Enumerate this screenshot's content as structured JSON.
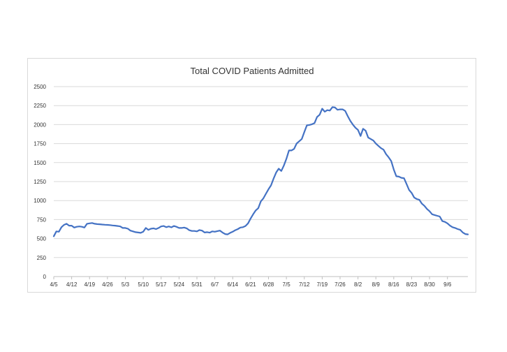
{
  "chart_data": {
    "type": "line",
    "title": "Total COVID Patients Admitted",
    "xlabel": "",
    "ylabel": "",
    "ylim": [
      0,
      2500
    ],
    "yticks": [
      0,
      250,
      500,
      750,
      1000,
      1250,
      1500,
      1750,
      2000,
      2250,
      2500
    ],
    "grid": true,
    "legend": "none",
    "colors": {
      "line": "#4472c4",
      "grid": "#d9d9d9",
      "axis": "#bfbfbf"
    },
    "xticks": [
      {
        "label": "4/5",
        "day": 0
      },
      {
        "label": "4/12",
        "day": 7
      },
      {
        "label": "4/19",
        "day": 14
      },
      {
        "label": "4/26",
        "day": 21
      },
      {
        "label": "5/3",
        "day": 28
      },
      {
        "label": "5/10",
        "day": 35
      },
      {
        "label": "5/17",
        "day": 42
      },
      {
        "label": "5/24",
        "day": 49
      },
      {
        "label": "5/31",
        "day": 56
      },
      {
        "label": "6/7",
        "day": 63
      },
      {
        "label": "6/14",
        "day": 70
      },
      {
        "label": "6/21",
        "day": 77
      },
      {
        "label": "6/28",
        "day": 84
      },
      {
        "label": "7/5",
        "day": 91
      },
      {
        "label": "7/12",
        "day": 98
      },
      {
        "label": "7/19",
        "day": 105
      },
      {
        "label": "7/26",
        "day": 112
      },
      {
        "label": "8/2",
        "day": 119
      },
      {
        "label": "8/9",
        "day": 126
      },
      {
        "label": "8/16",
        "day": 133
      },
      {
        "label": "8/23",
        "day": 140
      },
      {
        "label": "8/30",
        "day": 147
      },
      {
        "label": "9/6",
        "day": 154
      }
    ],
    "series": [
      {
        "values": [
          [
            0,
            530
          ],
          [
            1,
            595
          ],
          [
            2,
            590
          ],
          [
            3,
            650
          ],
          [
            4,
            680
          ],
          [
            5,
            695
          ],
          [
            6,
            670
          ],
          [
            7,
            670
          ],
          [
            8,
            645
          ],
          [
            9,
            655
          ],
          [
            10,
            660
          ],
          [
            11,
            655
          ],
          [
            12,
            645
          ],
          [
            13,
            695
          ],
          [
            14,
            700
          ],
          [
            15,
            705
          ],
          [
            16,
            695
          ],
          [
            17,
            690
          ],
          [
            18,
            688
          ],
          [
            19,
            685
          ],
          [
            20,
            682
          ],
          [
            21,
            680
          ],
          [
            22,
            677
          ],
          [
            23,
            673
          ],
          [
            24,
            670
          ],
          [
            25,
            665
          ],
          [
            26,
            660
          ],
          [
            27,
            640
          ],
          [
            28,
            640
          ],
          [
            29,
            630
          ],
          [
            30,
            605
          ],
          [
            31,
            595
          ],
          [
            32,
            585
          ],
          [
            33,
            580
          ],
          [
            34,
            575
          ],
          [
            35,
            590
          ],
          [
            36,
            640
          ],
          [
            37,
            615
          ],
          [
            38,
            630
          ],
          [
            39,
            635
          ],
          [
            40,
            625
          ],
          [
            41,
            640
          ],
          [
            42,
            660
          ],
          [
            43,
            665
          ],
          [
            44,
            650
          ],
          [
            45,
            660
          ],
          [
            46,
            648
          ],
          [
            47,
            665
          ],
          [
            48,
            655
          ],
          [
            49,
            640
          ],
          [
            50,
            640
          ],
          [
            51,
            645
          ],
          [
            52,
            635
          ],
          [
            53,
            610
          ],
          [
            54,
            600
          ],
          [
            55,
            600
          ],
          [
            56,
            595
          ],
          [
            57,
            612
          ],
          [
            58,
            605
          ],
          [
            59,
            580
          ],
          [
            60,
            585
          ],
          [
            61,
            578
          ],
          [
            62,
            595
          ],
          [
            63,
            590
          ],
          [
            64,
            598
          ],
          [
            65,
            605
          ],
          [
            66,
            580
          ],
          [
            67,
            560
          ],
          [
            68,
            555
          ],
          [
            69,
            575
          ],
          [
            70,
            590
          ],
          [
            71,
            610
          ],
          [
            72,
            625
          ],
          [
            73,
            645
          ],
          [
            74,
            650
          ],
          [
            75,
            665
          ],
          [
            76,
            700
          ],
          [
            77,
            765
          ],
          [
            78,
            820
          ],
          [
            79,
            870
          ],
          [
            80,
            900
          ],
          [
            81,
            990
          ],
          [
            82,
            1030
          ],
          [
            83,
            1090
          ],
          [
            84,
            1150
          ],
          [
            85,
            1200
          ],
          [
            86,
            1290
          ],
          [
            87,
            1370
          ],
          [
            88,
            1420
          ],
          [
            89,
            1390
          ],
          [
            90,
            1460
          ],
          [
            91,
            1550
          ],
          [
            92,
            1660
          ],
          [
            93,
            1660
          ],
          [
            94,
            1680
          ],
          [
            95,
            1750
          ],
          [
            96,
            1780
          ],
          [
            97,
            1810
          ],
          [
            98,
            1900
          ],
          [
            99,
            1990
          ],
          [
            100,
            1995
          ],
          [
            101,
            2005
          ],
          [
            102,
            2020
          ],
          [
            103,
            2100
          ],
          [
            104,
            2130
          ],
          [
            105,
            2210
          ],
          [
            106,
            2170
          ],
          [
            107,
            2190
          ],
          [
            108,
            2185
          ],
          [
            109,
            2230
          ],
          [
            110,
            2225
          ],
          [
            111,
            2195
          ],
          [
            112,
            2200
          ],
          [
            113,
            2200
          ],
          [
            114,
            2180
          ],
          [
            115,
            2110
          ],
          [
            116,
            2050
          ],
          [
            117,
            2000
          ],
          [
            118,
            1960
          ],
          [
            119,
            1930
          ],
          [
            120,
            1850
          ],
          [
            121,
            1945
          ],
          [
            122,
            1920
          ],
          [
            123,
            1830
          ],
          [
            124,
            1810
          ],
          [
            125,
            1790
          ],
          [
            126,
            1750
          ],
          [
            127,
            1720
          ],
          [
            128,
            1690
          ],
          [
            129,
            1670
          ],
          [
            130,
            1610
          ],
          [
            131,
            1570
          ],
          [
            132,
            1520
          ],
          [
            133,
            1410
          ],
          [
            134,
            1320
          ],
          [
            135,
            1315
          ],
          [
            136,
            1300
          ],
          [
            137,
            1295
          ],
          [
            138,
            1220
          ],
          [
            139,
            1140
          ],
          [
            140,
            1100
          ],
          [
            141,
            1040
          ],
          [
            142,
            1020
          ],
          [
            143,
            1010
          ],
          [
            144,
            960
          ],
          [
            145,
            930
          ],
          [
            146,
            890
          ],
          [
            147,
            860
          ],
          [
            148,
            820
          ],
          [
            149,
            810
          ],
          [
            150,
            800
          ],
          [
            151,
            790
          ],
          [
            152,
            730
          ],
          [
            153,
            720
          ],
          [
            154,
            700
          ],
          [
            155,
            670
          ],
          [
            156,
            650
          ],
          [
            157,
            640
          ],
          [
            158,
            625
          ],
          [
            159,
            615
          ],
          [
            160,
            580
          ],
          [
            161,
            560
          ],
          [
            162,
            555
          ]
        ]
      }
    ]
  }
}
